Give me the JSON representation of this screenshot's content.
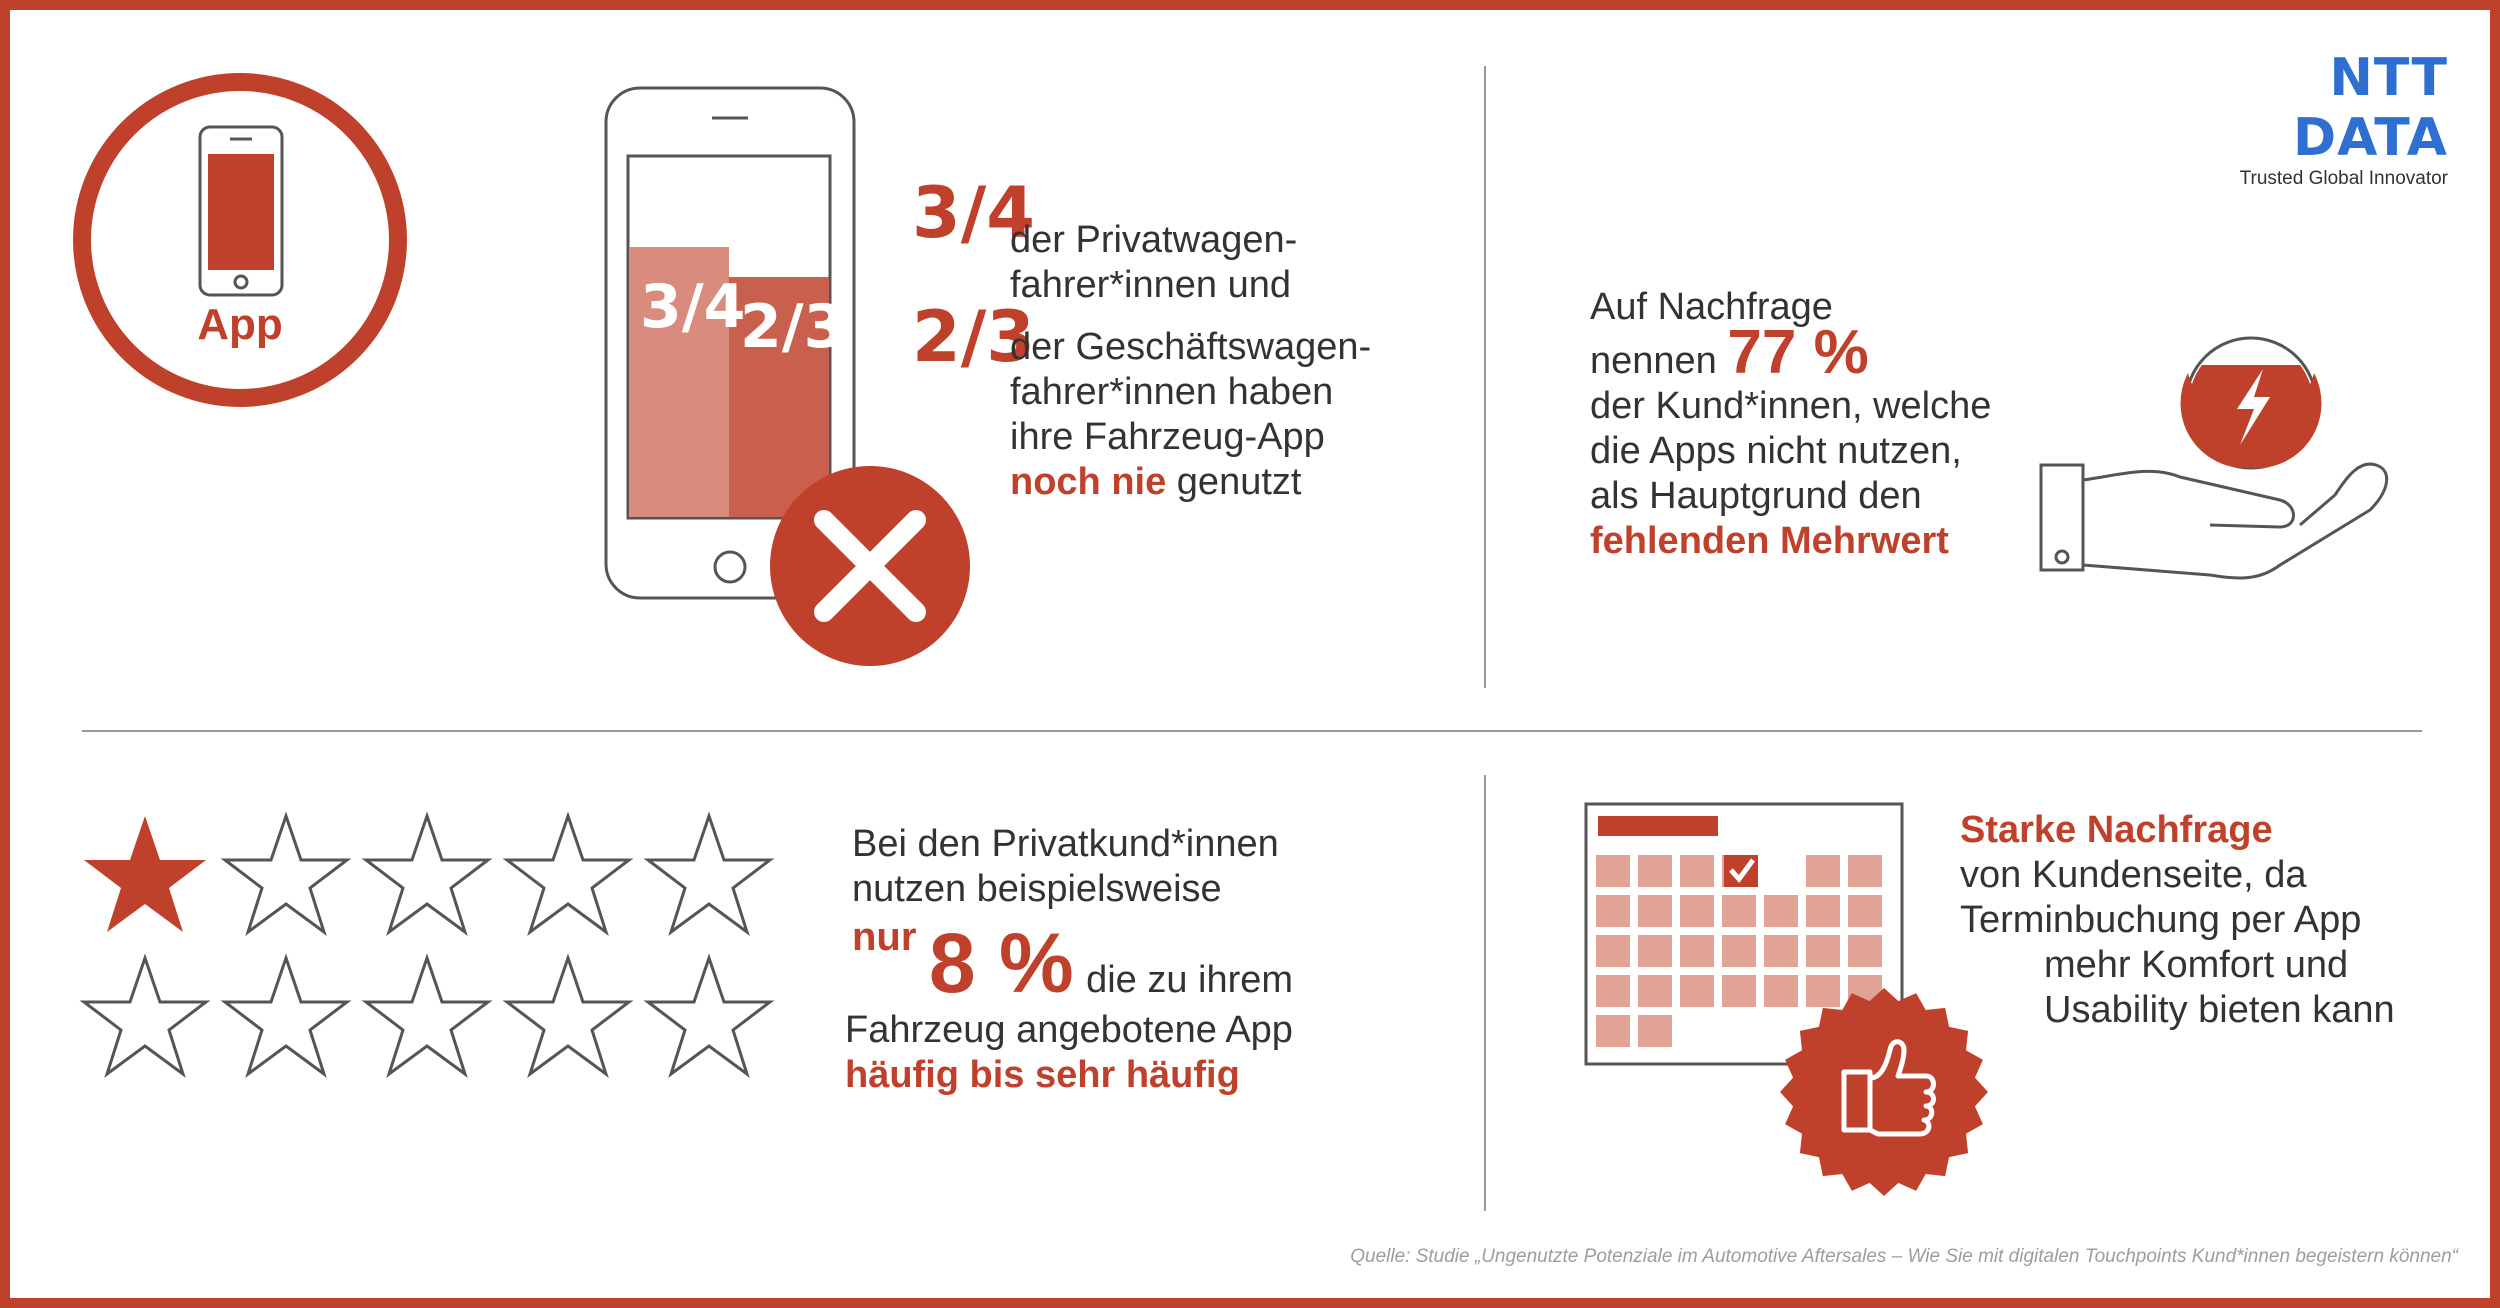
{
  "logo": {
    "name": "NTT DATA",
    "tagline": "Trusted Global Innovator"
  },
  "app_badge": {
    "label": "App",
    "icon": "smartphone-icon"
  },
  "phone_bars": {
    "bar1_label": "3/4",
    "bar2_label": "2/3",
    "bar1_value": 0.75,
    "bar2_value": 0.6667
  },
  "q1": {
    "frac1": "3/4",
    "line1a": "der Privatwagen-",
    "line1b": "fahrer*innen und",
    "frac2": "2/3",
    "line2a": "der Geschäftswagen-",
    "line2b": "fahrer*innen haben",
    "line2c": "ihre Fahrzeug-App",
    "emph": "noch nie",
    "tail": "genutzt"
  },
  "q2": {
    "line1": "Auf Nachfrage",
    "line2": "nennen",
    "stat": "77 %",
    "line3": "der Kund*innen, welche",
    "line4": "die Apps nicht nutzen,",
    "line5": "als Hauptgrund den",
    "emph": "fehlenden Mehrwert"
  },
  "q3": {
    "line1": "Bei den Privatkund*innen",
    "line2": "nutzen beispielsweise",
    "nur": "nur",
    "stat": "8 %",
    "line3": "die zu ihrem",
    "line4": "Fahrzeug angebotene App",
    "emph": "häufig bis sehr häufig",
    "stars_total": 10,
    "stars_filled": 1
  },
  "q4": {
    "emph": "Starke Nachfrage",
    "line1": "von Kundenseite, da",
    "line2": "Terminbuchung per App",
    "line3": "mehr Komfort und",
    "line4": "Usability bieten kann"
  },
  "source": "Quelle: Studie „Ungenutzte Potenziale im Automotive Aftersales – Wie Sie mit digitalen Touchpoints Kund*innen begeistern können“",
  "colors": {
    "accent": "#c0412b",
    "bar_light": "#d98b7d",
    "bar_dark": "#c9604e",
    "cell": "#e0a396",
    "logo": "#2e6fd1"
  }
}
